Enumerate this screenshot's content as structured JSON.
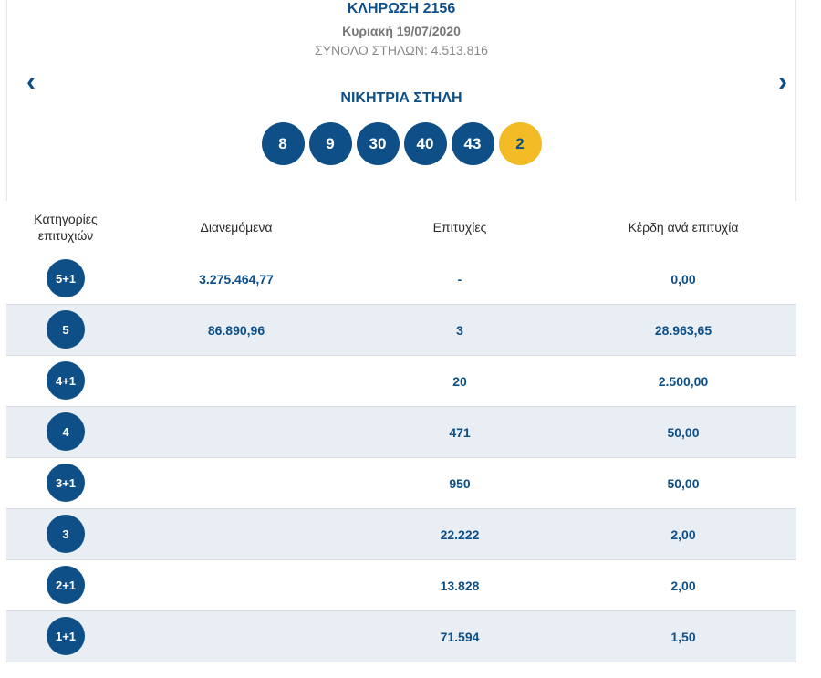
{
  "draw": {
    "title": "ΚΛΗΡΩΣΗ 2156",
    "date": "Κυριακή 19/07/2020",
    "total_columns": "ΣΥΝΟΛΟ ΣΤΗΛΩΝ: 4.513.816",
    "prev_icon": "chevron-left-icon",
    "next_icon": "chevron-right-icon",
    "prev_glyph": "‹",
    "next_glyph": "›",
    "winning_label": "ΝΙΚΗΤΡΙΑ ΣΤΗΛΗ",
    "numbers": [
      "8",
      "9",
      "30",
      "40",
      "43"
    ],
    "bonus": "2"
  },
  "colors": {
    "primary": "#0d4f86",
    "bonus": "#f2bb26",
    "row_alt": "#e9eef5"
  },
  "table": {
    "headers": {
      "category": "Κατηγορίες επιτυχιών",
      "distributed": "Διανεμόμενα",
      "winners": "Επιτυχίες",
      "prize": "Κέρδη ανά επιτυχία"
    },
    "rows": [
      {
        "category": "5+1",
        "distributed": "3.275.464,77",
        "winners": "-",
        "prize": "0,00"
      },
      {
        "category": "5",
        "distributed": "86.890,96",
        "winners": "3",
        "prize": "28.963,65"
      },
      {
        "category": "4+1",
        "distributed": "",
        "winners": "20",
        "prize": "2.500,00"
      },
      {
        "category": "4",
        "distributed": "",
        "winners": "471",
        "prize": "50,00"
      },
      {
        "category": "3+1",
        "distributed": "",
        "winners": "950",
        "prize": "50,00"
      },
      {
        "category": "3",
        "distributed": "",
        "winners": "22.222",
        "prize": "2,00"
      },
      {
        "category": "2+1",
        "distributed": "",
        "winners": "13.828",
        "prize": "2,00"
      },
      {
        "category": "1+1",
        "distributed": "",
        "winners": "71.594",
        "prize": "1,50"
      }
    ]
  }
}
